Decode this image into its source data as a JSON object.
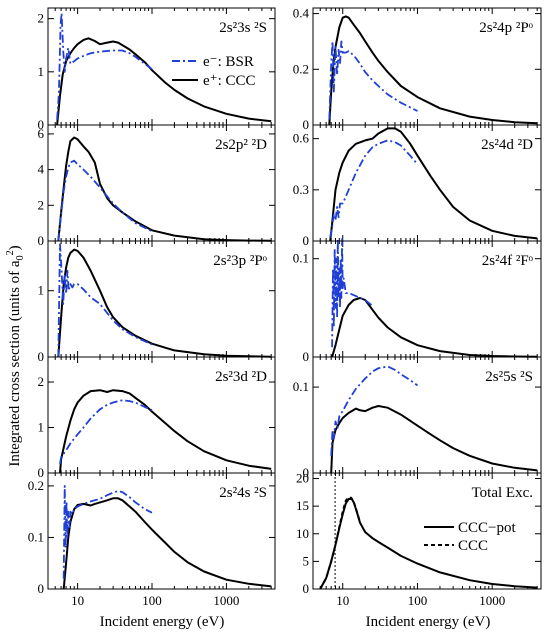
{
  "figure": {
    "ylabel": "Integrated cross section (units of a",
    "ylabel_sub": "0",
    "ylabel_sup": "2",
    "ylabel_close": ")",
    "xlabel": "Incident energy (eV)",
    "xticklabels": [
      "10",
      "100",
      "1000"
    ],
    "legend_bsr": "e⁻: BSR",
    "legend_ccc": "e⁺: CCC",
    "legend_pot": "CCC−pot",
    "legend_ccc2": "CCC"
  },
  "chart_data": [
    {
      "id": "p0",
      "type": "line",
      "title": "2s²3s ²S",
      "xlim": [
        4,
        4500
      ],
      "xscale": "log",
      "ylim": [
        0,
        2.2
      ],
      "yticks": [
        0,
        1,
        2
      ],
      "series": [
        {
          "style": "solid",
          "x": [
            5.3,
            5.8,
            6.3,
            7,
            8,
            9,
            10,
            12,
            14,
            17,
            20,
            25,
            30,
            35,
            40,
            50,
            60,
            80,
            100,
            150,
            200,
            300,
            500,
            1000,
            2000,
            4000
          ],
          "y": [
            0,
            0.55,
            0.95,
            1.2,
            1.35,
            1.45,
            1.52,
            1.6,
            1.63,
            1.58,
            1.52,
            1.55,
            1.57,
            1.55,
            1.5,
            1.42,
            1.33,
            1.18,
            1.03,
            0.8,
            0.66,
            0.5,
            0.35,
            0.21,
            0.12,
            0.07
          ]
        },
        {
          "style": "dashdot",
          "x": [
            5.3,
            5.6,
            5.9,
            6.1,
            6.4,
            6.7,
            7,
            7.5,
            8,
            9,
            10,
            12,
            15,
            20,
            30,
            40,
            50,
            60,
            80,
            100
          ],
          "y": [
            0.1,
            0.6,
            1.9,
            2.1,
            1.4,
            1.0,
            1.25,
            1.45,
            1.15,
            1.2,
            1.25,
            1.3,
            1.35,
            1.38,
            1.4,
            1.4,
            1.35,
            1.28,
            1.15,
            1.05
          ]
        }
      ]
    },
    {
      "id": "p1",
      "type": "line",
      "title": "2s²4p ²Pᵒ",
      "xlim": [
        4,
        4500
      ],
      "xscale": "log",
      "ylim": [
        0,
        0.42
      ],
      "yticks": [
        0,
        0.2,
        0.4
      ],
      "series": [
        {
          "style": "solid",
          "x": [
            6.6,
            7,
            7.5,
            8,
            9,
            10,
            11,
            12,
            14,
            17,
            20,
            25,
            30,
            40,
            60,
            100,
            200,
            500,
            1000,
            2000,
            4000
          ],
          "y": [
            0,
            0.12,
            0.22,
            0.28,
            0.35,
            0.385,
            0.39,
            0.385,
            0.36,
            0.33,
            0.3,
            0.26,
            0.23,
            0.19,
            0.14,
            0.1,
            0.06,
            0.03,
            0.018,
            0.01,
            0.006
          ]
        },
        {
          "style": "dashdot",
          "x": [
            6.6,
            7,
            7.3,
            7.6,
            8,
            8.4,
            8.8,
            9.2,
            9.6,
            10,
            11,
            12,
            14,
            17,
            20,
            25,
            30,
            40,
            60,
            100
          ],
          "y": [
            0.02,
            0.22,
            0.3,
            0.12,
            0.28,
            0.18,
            0.27,
            0.22,
            0.3,
            0.26,
            0.26,
            0.265,
            0.25,
            0.22,
            0.19,
            0.16,
            0.14,
            0.11,
            0.08,
            0.05
          ]
        }
      ]
    },
    {
      "id": "p2",
      "type": "line",
      "title": "2s2p² ²D",
      "xlim": [
        4,
        4500
      ],
      "xscale": "log",
      "ylim": [
        0,
        6.5
      ],
      "yticks": [
        0,
        2,
        4,
        6
      ],
      "series": [
        {
          "style": "solid",
          "x": [
            5.5,
            6,
            6.5,
            7,
            7.5,
            8,
            9,
            10,
            12,
            14,
            17,
            20,
            25,
            30,
            40,
            60,
            100,
            200,
            500,
            1000,
            2000,
            4000
          ],
          "y": [
            0,
            1.6,
            3.0,
            4.2,
            5.0,
            5.6,
            5.8,
            5.7,
            5.3,
            5.0,
            4.4,
            3.2,
            2.4,
            2.0,
            1.6,
            1.1,
            0.6,
            0.3,
            0.1,
            0.05,
            0.02,
            0.01
          ]
        },
        {
          "style": "dashdot",
          "x": [
            5.5,
            6,
            6.5,
            7,
            7.5,
            8,
            9,
            10,
            12,
            15,
            20,
            25,
            30,
            40,
            60,
            100
          ],
          "y": [
            0,
            1.5,
            2.8,
            3.6,
            4.1,
            4.4,
            4.5,
            4.3,
            4.0,
            3.6,
            3.0,
            2.5,
            2.1,
            1.6,
            1.0,
            0.55
          ]
        }
      ]
    },
    {
      "id": "p3",
      "type": "line",
      "title": "2s²4d ²D",
      "xlim": [
        4,
        4500
      ],
      "xscale": "log",
      "ylim": [
        0,
        0.68
      ],
      "yticks": [
        0,
        0.3,
        0.6
      ],
      "series": [
        {
          "style": "solid",
          "x": [
            6.8,
            7.2,
            8,
            9,
            10,
            12,
            15,
            20,
            25,
            30,
            40,
            50,
            60,
            80,
            100,
            150,
            200,
            300,
            500,
            1000,
            2000,
            4000
          ],
          "y": [
            0,
            0.1,
            0.3,
            0.4,
            0.46,
            0.53,
            0.57,
            0.59,
            0.6,
            0.63,
            0.66,
            0.66,
            0.64,
            0.57,
            0.5,
            0.38,
            0.3,
            0.2,
            0.12,
            0.06,
            0.03,
            0.015
          ]
        },
        {
          "style": "dashdot",
          "x": [
            6.8,
            7.2,
            7.6,
            8,
            8.4,
            8.8,
            9.2,
            10,
            11,
            12,
            15,
            20,
            25,
            30,
            40,
            50,
            60,
            80,
            100
          ],
          "y": [
            0.02,
            0.08,
            0.16,
            0.12,
            0.2,
            0.14,
            0.22,
            0.22,
            0.26,
            0.3,
            0.4,
            0.5,
            0.55,
            0.57,
            0.59,
            0.58,
            0.56,
            0.5,
            0.45
          ]
        }
      ]
    },
    {
      "id": "p4",
      "type": "line",
      "title": "2s²3p ²Pᵒ",
      "xlim": [
        4,
        4500
      ],
      "xscale": "log",
      "ylim": [
        0,
        1.75
      ],
      "yticks": [
        0,
        1
      ],
      "series": [
        {
          "style": "solid",
          "x": [
            5.5,
            6,
            6.5,
            7,
            7.5,
            8,
            9,
            10,
            12,
            15,
            20,
            25,
            30,
            40,
            60,
            100,
            200,
            500,
            1000,
            2000,
            4000
          ],
          "y": [
            0,
            0.6,
            1.1,
            1.35,
            1.5,
            1.57,
            1.62,
            1.6,
            1.5,
            1.3,
            1.0,
            0.75,
            0.6,
            0.45,
            0.32,
            0.2,
            0.1,
            0.04,
            0.02,
            0.01,
            0.005
          ]
        },
        {
          "style": "dashdot",
          "x": [
            5.5,
            5.8,
            6.1,
            6.4,
            6.7,
            7,
            7.3,
            7.6,
            8,
            8.5,
            9,
            10,
            12,
            15,
            20,
            30,
            40,
            60,
            100
          ],
          "y": [
            0,
            1.7,
            1.3,
            0.8,
            1.25,
            0.95,
            1.3,
            1.0,
            1.1,
            1.05,
            1.1,
            1.1,
            1.02,
            0.9,
            0.8,
            0.55,
            0.42,
            0.3,
            0.19
          ]
        }
      ]
    },
    {
      "id": "p5",
      "type": "line",
      "title": "2s²4f ²Fᵒ",
      "xlim": [
        4,
        4500
      ],
      "xscale": "log",
      "ylim": [
        0,
        0.118
      ],
      "yticks": [
        0,
        0.1
      ],
      "series": [
        {
          "style": "solid",
          "x": [
            7.2,
            8,
            9,
            10,
            12,
            14,
            17,
            20,
            25,
            30,
            40,
            60,
            100,
            200,
            500,
            1000,
            2000,
            4000
          ],
          "y": [
            0,
            0.012,
            0.028,
            0.042,
            0.053,
            0.058,
            0.06,
            0.058,
            0.048,
            0.04,
            0.03,
            0.02,
            0.012,
            0.006,
            0.002,
            0.001,
            0.0005,
            0.0002
          ]
        },
        {
          "style": "dashdot",
          "x": [
            7.2,
            7.4,
            7.6,
            7.8,
            8,
            8.2,
            8.4,
            8.6,
            8.8,
            9,
            9.2,
            9.4,
            9.6,
            9.8,
            10,
            10.3,
            11,
            12,
            13,
            15,
            20,
            25
          ],
          "y": [
            0.01,
            0.09,
            0.03,
            0.11,
            0.05,
            0.1,
            0.04,
            0.12,
            0.06,
            0.09,
            0.05,
            0.1,
            0.06,
            0.12,
            0.07,
            0.08,
            0.065,
            0.065,
            0.064,
            0.062,
            0.058,
            0.052
          ]
        }
      ]
    },
    {
      "id": "p6",
      "type": "line",
      "title": "2s²3d ²D",
      "xlim": [
        4,
        4500
      ],
      "xscale": "log",
      "ylim": [
        0,
        2.55
      ],
      "yticks": [
        0,
        1,
        2
      ],
      "series": [
        {
          "style": "solid",
          "x": [
            5.8,
            6,
            7,
            8,
            9,
            10,
            12,
            15,
            20,
            25,
            30,
            40,
            50,
            60,
            80,
            100,
            150,
            200,
            300,
            500,
            1000,
            2000,
            4000
          ],
          "y": [
            0,
            0.3,
            0.8,
            1.15,
            1.4,
            1.55,
            1.7,
            1.8,
            1.82,
            1.78,
            1.82,
            1.8,
            1.75,
            1.65,
            1.5,
            1.35,
            1.1,
            0.92,
            0.7,
            0.48,
            0.28,
            0.16,
            0.09
          ]
        },
        {
          "style": "dashdot",
          "x": [
            5.8,
            6,
            7,
            8,
            10,
            12,
            15,
            20,
            25,
            30,
            40,
            50,
            60,
            80,
            100
          ],
          "y": [
            0.2,
            0.35,
            0.5,
            0.65,
            0.85,
            1.0,
            1.2,
            1.4,
            1.5,
            1.55,
            1.6,
            1.58,
            1.55,
            1.45,
            1.38
          ]
        }
      ]
    },
    {
      "id": "p7",
      "type": "line",
      "title": "2s²5s ²S",
      "xlim": [
        4,
        4500
      ],
      "xscale": "log",
      "ylim": [
        0,
        0.135
      ],
      "yticks": [
        0,
        0.1
      ],
      "series": [
        {
          "style": "solid",
          "x": [
            7,
            7.3,
            8,
            9,
            10,
            12,
            15,
            17,
            20,
            25,
            30,
            40,
            60,
            100,
            150,
            200,
            300,
            500,
            1000,
            2000,
            4000
          ],
          "y": [
            0,
            0.035,
            0.05,
            0.058,
            0.064,
            0.07,
            0.075,
            0.073,
            0.072,
            0.076,
            0.078,
            0.076,
            0.068,
            0.055,
            0.045,
            0.038,
            0.029,
            0.02,
            0.011,
            0.006,
            0.003
          ]
        },
        {
          "style": "dashdot",
          "x": [
            7,
            7.3,
            7.6,
            8,
            8.5,
            9,
            10,
            12,
            15,
            20,
            25,
            30,
            40,
            50,
            60,
            80,
            100
          ],
          "y": [
            0.02,
            0.05,
            0.04,
            0.06,
            0.052,
            0.066,
            0.072,
            0.085,
            0.098,
            0.11,
            0.118,
            0.122,
            0.124,
            0.12,
            0.115,
            0.108,
            0.102
          ]
        }
      ]
    },
    {
      "id": "p8",
      "type": "line",
      "title": "2s²4s ²S",
      "xlim": [
        4,
        4500
      ],
      "xscale": "log",
      "ylim": [
        0,
        0.225
      ],
      "yticks": [
        0,
        0.1,
        0.2
      ],
      "series": [
        {
          "style": "solid",
          "x": [
            6.5,
            7,
            7.5,
            8,
            9,
            10,
            12,
            15,
            17,
            20,
            25,
            30,
            35,
            40,
            50,
            60,
            80,
            100,
            150,
            200,
            300,
            500,
            1000,
            2000,
            4000
          ],
          "y": [
            0,
            0.05,
            0.1,
            0.13,
            0.155,
            0.163,
            0.165,
            0.162,
            0.165,
            0.168,
            0.172,
            0.176,
            0.176,
            0.172,
            0.16,
            0.15,
            0.13,
            0.115,
            0.09,
            0.072,
            0.052,
            0.034,
            0.018,
            0.01,
            0.005
          ]
        },
        {
          "style": "dashdot",
          "x": [
            6.5,
            6.7,
            6.9,
            7.1,
            7.3,
            7.5,
            7.8,
            8,
            8.5,
            9,
            10,
            12,
            15,
            20,
            25,
            30,
            35,
            40,
            50,
            60,
            80,
            100
          ],
          "y": [
            0.02,
            0.2,
            0.08,
            0.17,
            0.1,
            0.15,
            0.12,
            0.15,
            0.145,
            0.155,
            0.16,
            0.165,
            0.17,
            0.175,
            0.182,
            0.187,
            0.19,
            0.188,
            0.178,
            0.168,
            0.155,
            0.148
          ]
        }
      ]
    },
    {
      "id": "p9",
      "type": "line",
      "title": "Total Exc.",
      "xlim": [
        4,
        4500
      ],
      "xscale": "log",
      "ylim": [
        0,
        21
      ],
      "yticks": [
        0,
        5,
        10,
        15,
        20
      ],
      "marker_x": 7.9,
      "series": [
        {
          "style": "solid",
          "x": [
            5,
            6,
            7,
            8,
            9,
            10,
            11,
            12,
            13,
            14,
            15,
            17,
            20,
            25,
            30,
            40,
            60,
            100,
            200,
            500,
            1000,
            2000,
            4000
          ],
          "y": [
            0,
            2.0,
            5.0,
            8.0,
            11.0,
            13.5,
            15.5,
            16.3,
            16.4,
            15.7,
            14.5,
            12.0,
            10.3,
            9.2,
            8.5,
            7.5,
            6.0,
            4.6,
            3.0,
            1.6,
            0.9,
            0.5,
            0.25
          ]
        },
        {
          "style": "dash",
          "x": [
            5,
            6,
            7,
            8,
            9,
            10,
            11,
            12,
            13,
            14,
            15,
            17
          ],
          "y": [
            0,
            2.0,
            5.0,
            8.0,
            11.2,
            14.0,
            16.0,
            16.6,
            16.5,
            15.8,
            14.6,
            12.1
          ]
        }
      ]
    }
  ]
}
